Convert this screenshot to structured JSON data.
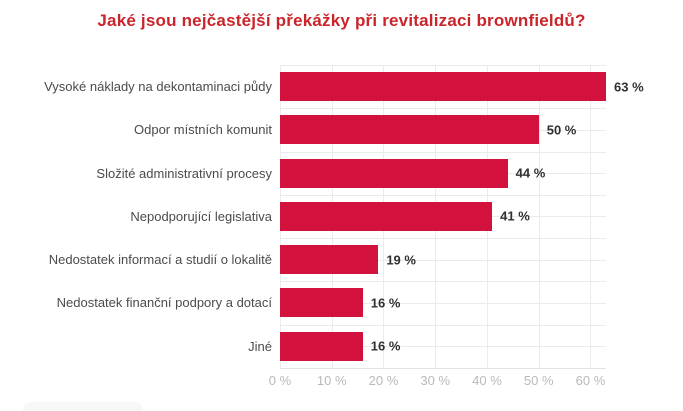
{
  "title": "Jaké jsou nejčastější překážky při revitalizaci brownfieldů?",
  "colors": {
    "bar": "#d2113c",
    "title": "#c9252b",
    "category_label": "#4b4b4b",
    "value_label": "#303030",
    "tick_label": "#b7babd",
    "grid": "#ebebeb",
    "axis": "#e2e2e2"
  },
  "chart_data": {
    "type": "bar",
    "orientation": "horizontal",
    "title": "Jaké jsou nejčastější překážky při revitalizaci brownfieldů?",
    "categories": [
      "Vysoké náklady na dekontaminaci půdy",
      "Odpor místních komunit",
      "Složité administrativní procesy",
      "Nepodporující legislativa",
      "Nedostatek informací a studií o lokalitě",
      "Nedostatek finanční podpory a dotací",
      "Jiné"
    ],
    "values": [
      63,
      50,
      44,
      41,
      19,
      16,
      16
    ],
    "value_labels": [
      "63 %",
      "50 %",
      "44 %",
      "41 %",
      "19 %",
      "16 %",
      "16 %"
    ],
    "x_ticks": [
      "0 %",
      "10 %",
      "20 %",
      "30 %",
      "40 %",
      "50 %",
      "60 %"
    ],
    "x_tick_values": [
      0,
      10,
      20,
      30,
      40,
      50,
      60
    ],
    "xlim": [
      0,
      63
    ],
    "xlabel": "",
    "ylabel": "",
    "grid": "on",
    "legend": "none"
  }
}
